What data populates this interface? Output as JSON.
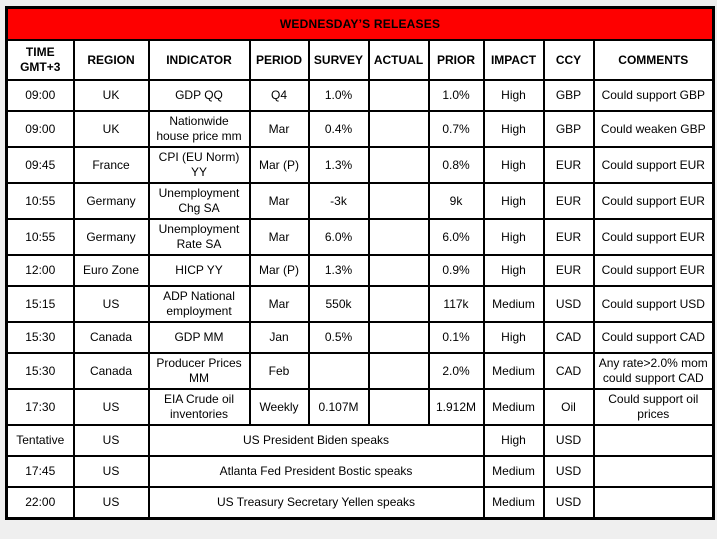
{
  "title": "WEDNESDAY’S RELEASES",
  "colors": {
    "banner_background": "#fe0000",
    "banner_text": "#ffffff",
    "table_border": "#000000",
    "cell_background": "#ffffff"
  },
  "columns": [
    {
      "label": "TIME",
      "sublabel": "GMT+3"
    },
    {
      "label": "REGION"
    },
    {
      "label": "INDICATOR"
    },
    {
      "label": "PERIOD"
    },
    {
      "label": "SURVEY"
    },
    {
      "label": "ACTUAL"
    },
    {
      "label": "PRIOR"
    },
    {
      "label": "IMPACT"
    },
    {
      "label": "CCY"
    },
    {
      "label": "COMMENTS"
    }
  ],
  "rows": [
    {
      "time": "09:00",
      "region": "UK",
      "indicator": "GDP QQ",
      "period": "Q4",
      "survey": "1.0%",
      "actual": "",
      "prior": "1.0%",
      "impact": "High",
      "ccy": "GBP",
      "comments": "Could support GBP",
      "merged": false
    },
    {
      "time": "09:00",
      "region": "UK",
      "indicator": "Nationwide house price mm",
      "period": "Mar",
      "survey": "0.4%",
      "actual": "",
      "prior": "0.7%",
      "impact": "High",
      "ccy": "GBP",
      "comments": "Could weaken GBP",
      "merged": false
    },
    {
      "time": "09:45",
      "region": "France",
      "indicator": "CPI (EU Norm) YY",
      "period": "Mar (P)",
      "survey": "1.3%",
      "actual": "",
      "prior": "0.8%",
      "impact": "High",
      "ccy": "EUR",
      "comments": "Could support EUR",
      "merged": false
    },
    {
      "time": "10:55",
      "region": "Germany",
      "indicator": "Unemployment Chg SA",
      "period": "Mar",
      "survey": "-3k",
      "actual": "",
      "prior": "9k",
      "impact": "High",
      "ccy": "EUR",
      "comments": "Could support EUR",
      "merged": false
    },
    {
      "time": "10:55",
      "region": "Germany",
      "indicator": "Unemployment Rate SA",
      "period": "Mar",
      "survey": "6.0%",
      "actual": "",
      "prior": "6.0%",
      "impact": "High",
      "ccy": "EUR",
      "comments": "Could support EUR",
      "merged": false
    },
    {
      "time": "12:00",
      "region": "Euro Zone",
      "indicator": "HICP YY",
      "period": "Mar (P)",
      "survey": "1.3%",
      "actual": "",
      "prior": "0.9%",
      "impact": "High",
      "ccy": "EUR",
      "comments": "Could support EUR",
      "merged": false
    },
    {
      "time": "15:15",
      "region": "US",
      "indicator": "ADP National employment",
      "period": "Mar",
      "survey": "550k",
      "actual": "",
      "prior": "117k",
      "impact": "Medium",
      "ccy": "USD",
      "comments": "Could support USD",
      "merged": false
    },
    {
      "time": "15:30",
      "region": "Canada",
      "indicator": "GDP MM",
      "period": "Jan",
      "survey": "0.5%",
      "actual": "",
      "prior": "0.1%",
      "impact": "High",
      "ccy": "CAD",
      "comments": "Could support CAD",
      "merged": false
    },
    {
      "time": "15:30",
      "region": "Canada",
      "indicator": "Producer Prices MM",
      "period": "Feb",
      "survey": "",
      "actual": "",
      "prior": "2.0%",
      "impact": "Medium",
      "ccy": "CAD",
      "comments": "Any rate>2.0% mom could support CAD",
      "merged": false
    },
    {
      "time": "17:30",
      "region": "US",
      "indicator": "EIA Crude oil inventories",
      "period": "Weekly",
      "survey": "0.107M",
      "actual": "",
      "prior": "1.912M",
      "impact": "Medium",
      "ccy": "Oil",
      "comments": "Could support oil prices",
      "merged": false
    },
    {
      "time": "Tentative",
      "region": "US",
      "indicator": "US President Biden speaks",
      "period": "",
      "survey": "",
      "actual": "",
      "prior": "",
      "impact": "High",
      "ccy": "USD",
      "comments": "",
      "merged": true
    },
    {
      "time": "17:45",
      "region": "US",
      "indicator": "Atlanta Fed President Bostic speaks",
      "period": "",
      "survey": "",
      "actual": "",
      "prior": "",
      "impact": "Medium",
      "ccy": "USD",
      "comments": "",
      "merged": true
    },
    {
      "time": "22:00",
      "region": "US",
      "indicator": "US Treasury Secretary Yellen speaks",
      "period": "",
      "survey": "",
      "actual": "",
      "prior": "",
      "impact": "Medium",
      "ccy": "USD",
      "comments": "",
      "merged": true
    }
  ]
}
